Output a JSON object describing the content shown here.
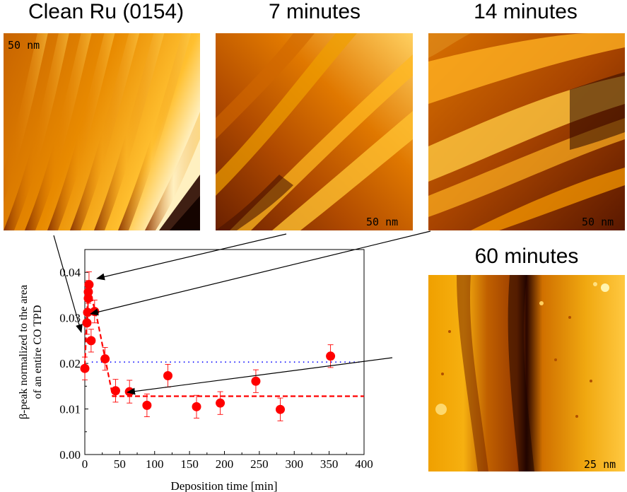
{
  "panels": [
    {
      "title": "Clean Ru (0154)",
      "scale": "50 nm"
    },
    {
      "title": "7 minutes",
      "scale": "50 nm"
    },
    {
      "title": "14 minutes",
      "scale": "50 nm"
    },
    {
      "title": "60 minutes",
      "scale": "25 nm"
    }
  ],
  "colors": {
    "stm_dark": "#2a0800",
    "stm_mid": "#c05400",
    "stm_bright": "#ffb000",
    "stm_highlight": "#fff8b0",
    "data_marker": "#ff0000",
    "reference_line": "#0000ff"
  },
  "chart_data": {
    "type": "scatter",
    "xlabel": "Deposition time [min]",
    "ylabel_lines": [
      "β-peak normalized to the area",
      "of an entire CO TPD"
    ],
    "xlim": [
      0,
      400
    ],
    "ylim": [
      0,
      0.045
    ],
    "xticks": [
      "0",
      "50",
      "100",
      "150",
      "200",
      "250",
      "300",
      "350",
      "400"
    ],
    "yticks": [
      "0.00",
      "0.01",
      "0.02",
      "0.03",
      "0.04"
    ],
    "points": [
      {
        "x": 0,
        "y": 0.0189,
        "err": 0.0025
      },
      {
        "x": 3,
        "y": 0.0289,
        "err": 0.0025
      },
      {
        "x": 4,
        "y": 0.0312,
        "err": 0.0025
      },
      {
        "x": 5,
        "y": 0.0343,
        "err": 0.0025
      },
      {
        "x": 5,
        "y": 0.0357,
        "err": 0.0025
      },
      {
        "x": 6,
        "y": 0.0373,
        "err": 0.0028
      },
      {
        "x": 9,
        "y": 0.025,
        "err": 0.0025
      },
      {
        "x": 14,
        "y": 0.0314,
        "err": 0.0025
      },
      {
        "x": 29,
        "y": 0.021,
        "err": 0.0025
      },
      {
        "x": 44,
        "y": 0.014,
        "err": 0.0025
      },
      {
        "x": 64,
        "y": 0.0138,
        "err": 0.0025
      },
      {
        "x": 89,
        "y": 0.0108,
        "err": 0.0025
      },
      {
        "x": 119,
        "y": 0.0173,
        "err": 0.0025
      },
      {
        "x": 160,
        "y": 0.0105,
        "err": 0.0025
      },
      {
        "x": 194,
        "y": 0.0113,
        "err": 0.0025
      },
      {
        "x": 245,
        "y": 0.0161,
        "err": 0.0025
      },
      {
        "x": 280,
        "y": 0.0099,
        "err": 0.0025
      },
      {
        "x": 352,
        "y": 0.0216,
        "err": 0.0025
      }
    ],
    "trend_line": [
      [
        0,
        0.0195
      ],
      [
        5,
        0.0373
      ],
      [
        18,
        0.0295
      ],
      [
        40,
        0.0128
      ],
      [
        400,
        0.0128
      ]
    ],
    "reference_y": 0.0203,
    "reference_x_range": [
      10,
      395
    ],
    "grid": false,
    "legend": "none"
  }
}
